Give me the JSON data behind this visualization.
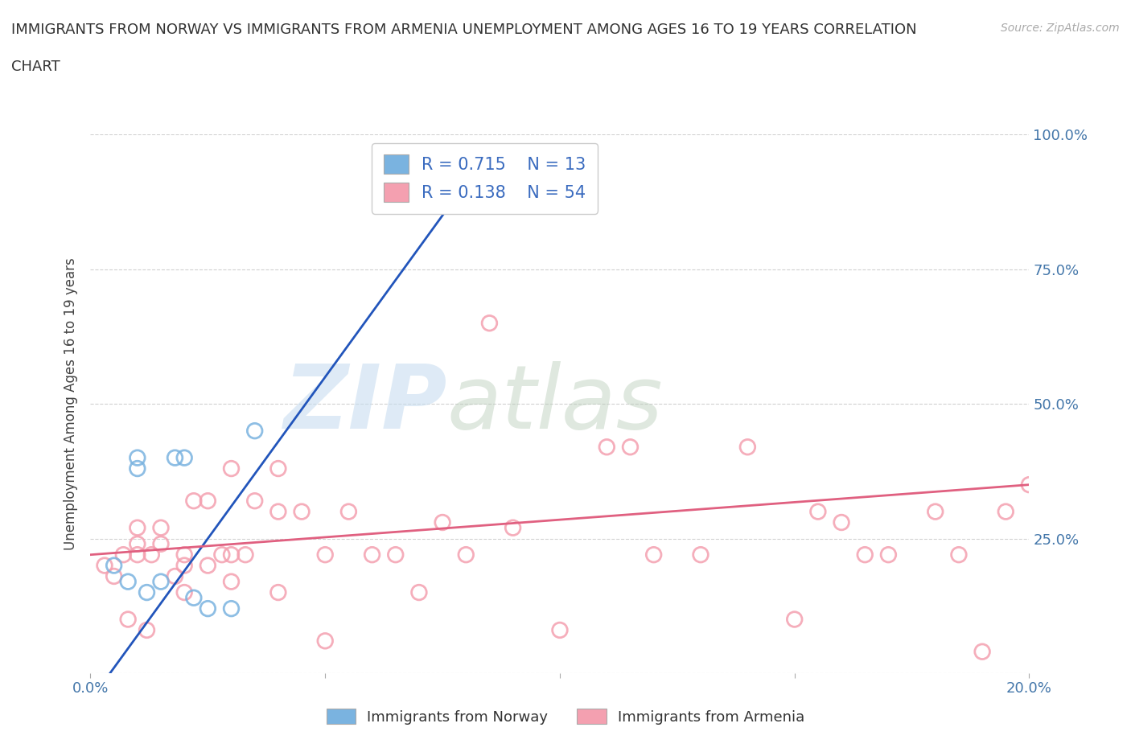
{
  "title_line1": "IMMIGRANTS FROM NORWAY VS IMMIGRANTS FROM ARMENIA UNEMPLOYMENT AMONG AGES 16 TO 19 YEARS CORRELATION",
  "title_line2": "CHART",
  "source": "Source: ZipAtlas.com",
  "ylabel": "Unemployment Among Ages 16 to 19 years",
  "xlim": [
    0.0,
    0.2
  ],
  "ylim": [
    0.0,
    1.0
  ],
  "xticks": [
    0.0,
    0.05,
    0.1,
    0.15,
    0.2
  ],
  "yticks": [
    0.0,
    0.25,
    0.5,
    0.75,
    1.0
  ],
  "norway_color": "#7ab3e0",
  "armenia_color": "#f4a0b0",
  "norway_R": 0.715,
  "norway_N": 13,
  "armenia_R": 0.138,
  "armenia_N": 54,
  "norway_line_color": "#2255bb",
  "armenia_line_color": "#e06080",
  "norway_x": [
    0.005,
    0.008,
    0.01,
    0.01,
    0.012,
    0.015,
    0.018,
    0.02,
    0.022,
    0.025,
    0.03,
    0.035,
    0.08
  ],
  "norway_y": [
    0.2,
    0.17,
    0.38,
    0.4,
    0.15,
    0.17,
    0.4,
    0.4,
    0.14,
    0.12,
    0.12,
    0.45,
    0.95
  ],
  "armenia_x": [
    0.003,
    0.005,
    0.007,
    0.008,
    0.01,
    0.01,
    0.01,
    0.012,
    0.013,
    0.015,
    0.015,
    0.018,
    0.02,
    0.02,
    0.02,
    0.022,
    0.025,
    0.025,
    0.028,
    0.03,
    0.03,
    0.03,
    0.033,
    0.035,
    0.04,
    0.04,
    0.04,
    0.045,
    0.05,
    0.05,
    0.055,
    0.06,
    0.065,
    0.07,
    0.075,
    0.08,
    0.085,
    0.09,
    0.1,
    0.11,
    0.115,
    0.12,
    0.13,
    0.14,
    0.15,
    0.155,
    0.16,
    0.165,
    0.17,
    0.18,
    0.185,
    0.19,
    0.195,
    0.2
  ],
  "armenia_y": [
    0.2,
    0.18,
    0.22,
    0.1,
    0.22,
    0.24,
    0.27,
    0.08,
    0.22,
    0.24,
    0.27,
    0.18,
    0.15,
    0.2,
    0.22,
    0.32,
    0.2,
    0.32,
    0.22,
    0.17,
    0.22,
    0.38,
    0.22,
    0.32,
    0.15,
    0.3,
    0.38,
    0.3,
    0.06,
    0.22,
    0.3,
    0.22,
    0.22,
    0.15,
    0.28,
    0.22,
    0.65,
    0.27,
    0.08,
    0.42,
    0.42,
    0.22,
    0.22,
    0.42,
    0.1,
    0.3,
    0.28,
    0.22,
    0.22,
    0.3,
    0.22,
    0.04,
    0.3,
    0.35
  ]
}
